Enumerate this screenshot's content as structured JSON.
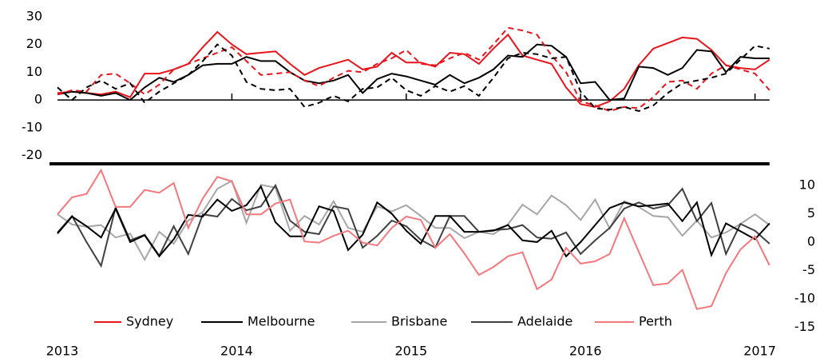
{
  "chart_data": {
    "type": "line",
    "categories": [
      "2013",
      null,
      null,
      null,
      null,
      null,
      null,
      null,
      null,
      null,
      null,
      null,
      "2014",
      null,
      null,
      null,
      null,
      null,
      null,
      null,
      null,
      null,
      null,
      null,
      "2015",
      null,
      null,
      null,
      null,
      null,
      null,
      null,
      null,
      null,
      null,
      null,
      "2016",
      null,
      null,
      null,
      null,
      null,
      null,
      null,
      null,
      null,
      null,
      null,
      "2017",
      null
    ],
    "panels": [
      {
        "axis_side": "left",
        "ylim": [
          -23,
          36
        ],
        "yticks": [
          -20,
          -10,
          0,
          10,
          20,
          30
        ],
        "series": [
          {
            "name": "Sydney",
            "color": "#e8141b",
            "dash": false,
            "values": [
              2.5,
              3,
              2.5,
              2,
              3,
              1,
              9.5,
              9.5,
              11,
              13,
              19,
              24.5,
              20,
              16.5,
              17,
              17.5,
              13,
              9,
              11.5,
              13,
              14.5,
              11,
              12,
              17,
              13.5,
              13.5,
              12,
              17,
              16.5,
              13,
              18.5,
              23.5,
              16,
              14.5,
              13,
              4.5,
              -1.5,
              -2.5,
              -0.5,
              4,
              12.5,
              18.5,
              20.5,
              22.5,
              22,
              18,
              12.5,
              11.5,
              11,
              14.5
            ]
          },
          {
            "name": "Melbourne",
            "color": "#000000",
            "dash": false,
            "values": [
              2,
              3,
              2.5,
              1.5,
              2.5,
              0,
              4.5,
              8,
              6.5,
              9,
              12.5,
              13,
              13,
              15.5,
              14,
              14,
              10,
              7,
              6,
              7,
              9,
              2.5,
              7.5,
              9.5,
              8.5,
              7,
              5.5,
              9,
              6,
              8,
              11,
              16,
              15.5,
              20,
              19.5,
              15.5,
              6,
              6.5,
              0,
              0.5,
              12,
              11.5,
              9,
              11.5,
              18,
              17.5,
              10,
              15.5,
              15,
              15
            ]
          },
          {
            "color": "#e8141b",
            "dash": true,
            "values": [
              2,
              3.5,
              3,
              9,
              9.5,
              6,
              2,
              5.5,
              11,
              13,
              15,
              17,
              19,
              14,
              9,
              9.5,
              10,
              7,
              5,
              8,
              10.5,
              10,
              13,
              15,
              18,
              13,
              12.5,
              15,
              17,
              14.5,
              20,
              26,
              25,
              23.5,
              16,
              10,
              -0.5,
              -2,
              -4,
              -2.5,
              -3,
              1,
              6.5,
              7,
              4,
              9.5,
              12.5,
              11,
              9.5,
              3.5
            ]
          },
          {
            "color": "#000000",
            "dash": true,
            "values": [
              4.5,
              0,
              4.5,
              7,
              4,
              6,
              -1,
              3,
              6,
              9,
              14,
              20,
              16,
              6.5,
              4,
              3.5,
              4,
              -2.5,
              -1,
              1.5,
              -0.5,
              4,
              4.5,
              8,
              3.5,
              1.5,
              5,
              3,
              5,
              1.5,
              8,
              15,
              17,
              16.5,
              15,
              15.5,
              3,
              -3,
              -3.5,
              -2.5,
              -4,
              -2,
              2.5,
              6,
              7,
              8,
              9.5,
              14.5,
              19.5,
              18.5
            ]
          }
        ]
      },
      {
        "axis_side": "right",
        "ylim": [
          -16.5,
          13.8
        ],
        "yticks": [
          -15,
          -10,
          -5,
          0,
          5,
          10
        ],
        "series": [
          {
            "name": "Brisbane",
            "color": "#a6a6a6",
            "dash": false,
            "values": [
              4.9,
              3.1,
              2.7,
              3,
              0.8,
              1.5,
              -3.1,
              1.8,
              -0.3,
              3.8,
              5.3,
              9.4,
              10.8,
              3.4,
              10.1,
              9.6,
              2,
              4.6,
              3.1,
              7.2,
              2.5,
              1.8,
              6.3,
              5.4,
              6.5,
              4.6,
              2.5,
              2.5,
              0.7,
              1.8,
              1.4,
              3.1,
              6.6,
              4.9,
              8.2,
              6.5,
              3.9,
              7.5,
              2.4,
              7.2,
              6.2,
              4.6,
              4.4,
              1.1,
              3.8,
              0.8,
              1.7,
              3.2,
              4.9,
              3
            ]
          },
          {
            "name": "Adelaide",
            "color": "#404040",
            "dash": false,
            "values": [
              1.7,
              4.6,
              0,
              -4.2,
              6.1,
              0.3,
              1.3,
              -2.4,
              2.8,
              -2.1,
              4.9,
              4.5,
              7.6,
              5.6,
              6.3,
              10,
              3.8,
              1.8,
              1.4,
              6.3,
              5.8,
              -1,
              1.1,
              3.8,
              2.8,
              0.4,
              -1,
              4.6,
              4.6,
              1.8,
              2.1,
              2.3,
              3,
              0.8,
              0.6,
              1.7,
              -2.1,
              0.3,
              2.5,
              5.9,
              7,
              5.9,
              6.5,
              9.4,
              3.7,
              6.9,
              -2.1,
              3.2,
              2,
              -0.3
            ]
          },
          {
            "color": "#000000",
            "dash": false,
            "values": [
              1.5,
              4.5,
              2.8,
              0.8,
              5.9,
              0,
              1.2,
              -2.5,
              0.5,
              4.8,
              4.5,
              7.5,
              5.5,
              6.5,
              9.8,
              3.5,
              1,
              1,
              6.3,
              5.5,
              -1.4,
              1.3,
              7,
              5,
              2,
              -0.3,
              4.6,
              4.6,
              1.8,
              1.8,
              2,
              3,
              0.3,
              0,
              2,
              -2.5,
              0,
              3,
              6,
              7,
              6.3,
              6.5,
              6.8,
              3.7,
              7,
              -2.3,
              3.3,
              1.9,
              0.5,
              3.3
            ]
          },
          {
            "name": "Perth",
            "color": "#f4787c",
            "dash": false,
            "values": [
              4.9,
              7.9,
              8.5,
              12.7,
              6.2,
              6.2,
              9.2,
              8.7,
              10.4,
              2.5,
              7.7,
              11.5,
              10.7,
              4.9,
              4.9,
              6.8,
              7.5,
              0.1,
              -0.1,
              1.1,
              2,
              -0.1,
              -0.6,
              2.5,
              4.5,
              3.9,
              -1,
              1.4,
              -2,
              -5.8,
              -4.4,
              -2.5,
              -1.8,
              -8.3,
              -6.6,
              -1,
              -3.8,
              -3.4,
              -2.1,
              4.2,
              -1.7,
              -7.6,
              -7.3,
              -4.9,
              -11.8,
              -11.3,
              -5.5,
              -1.3,
              1,
              -4.1
            ]
          }
        ]
      }
    ]
  }
}
